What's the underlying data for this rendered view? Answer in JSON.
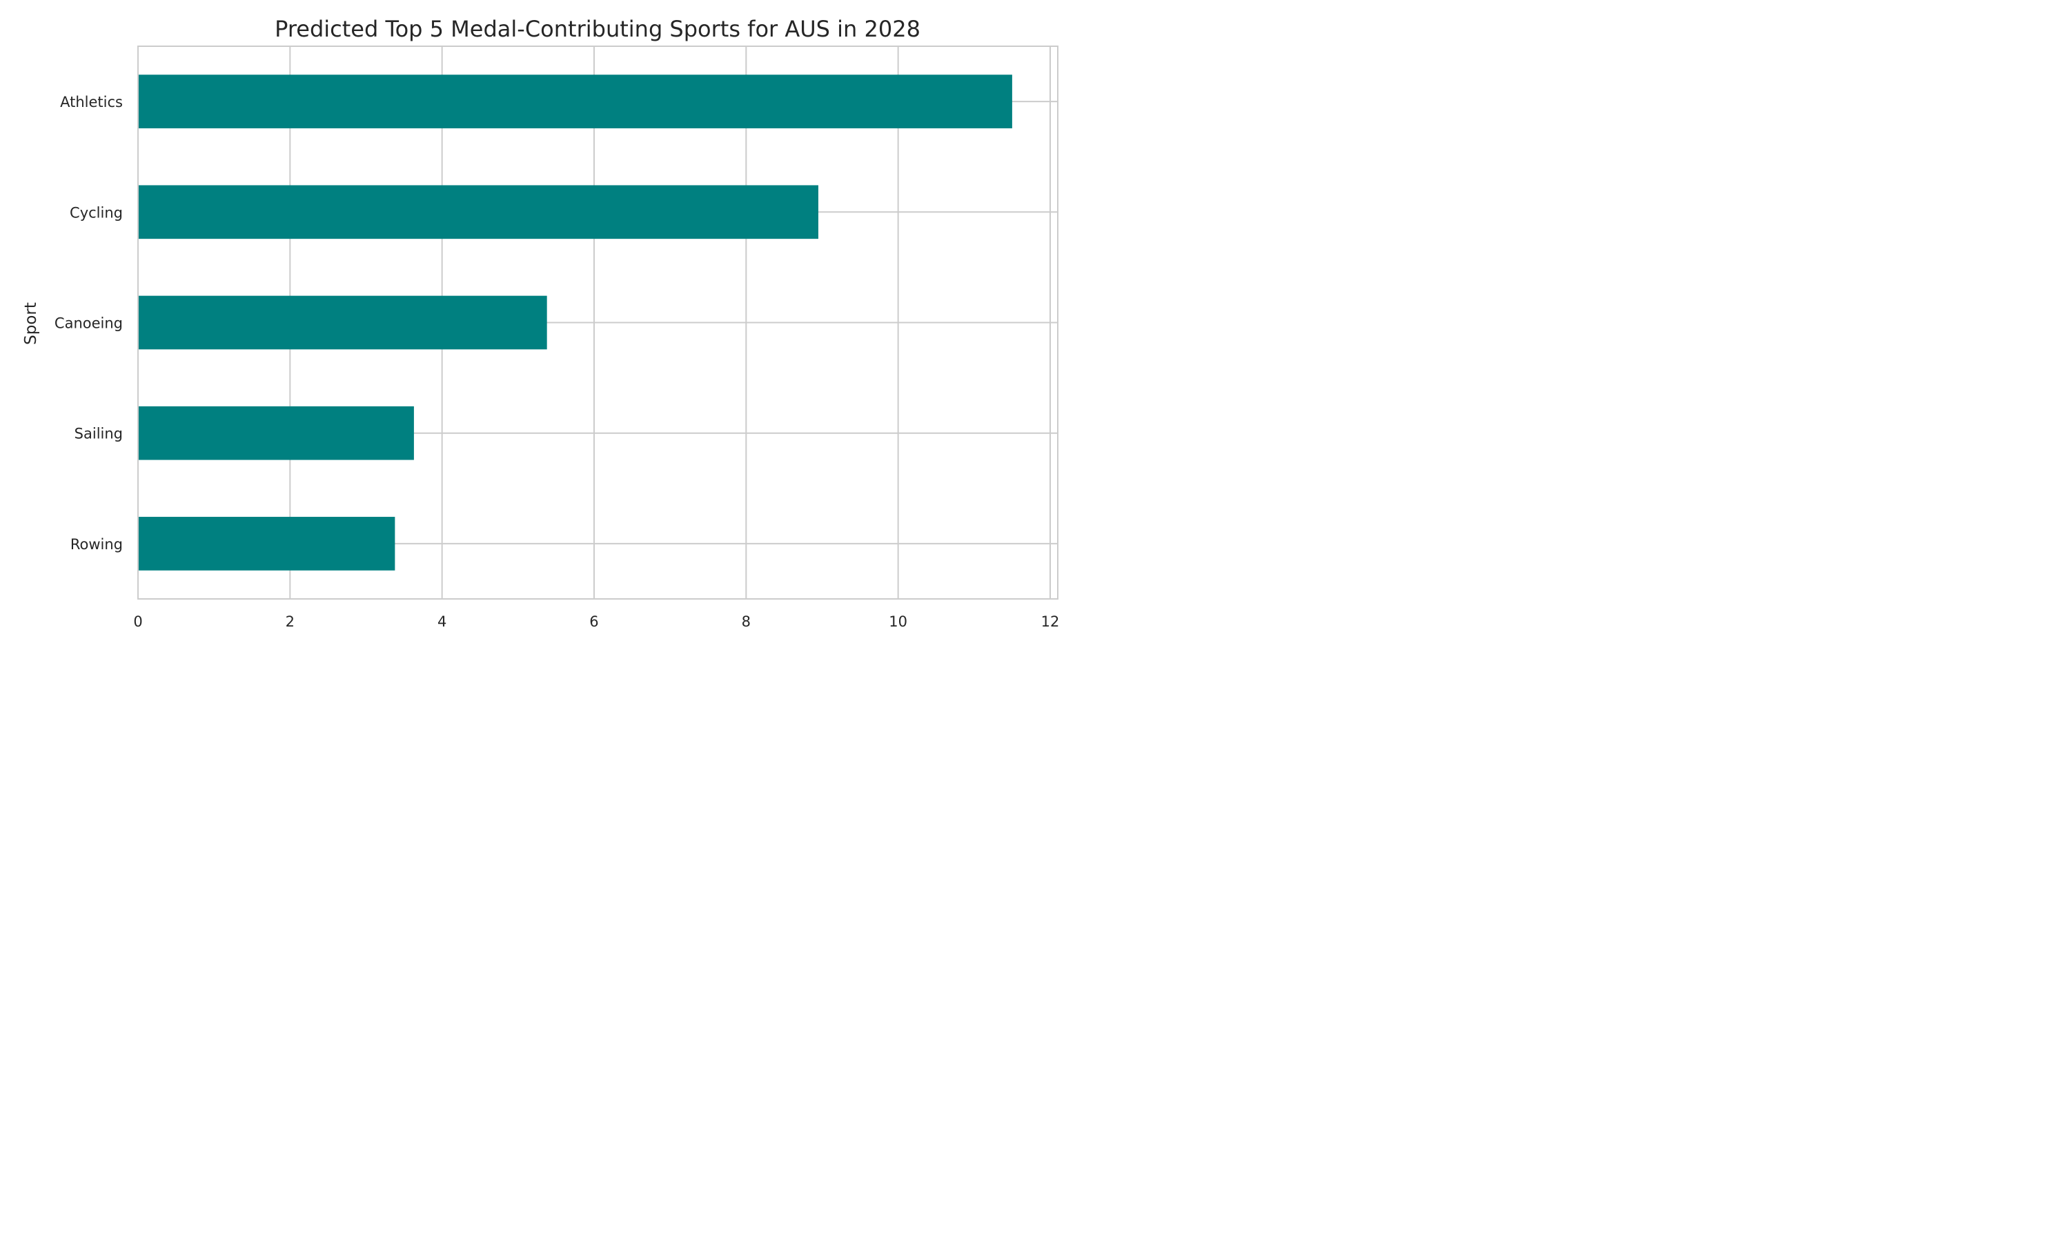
{
  "chart_data": {
    "type": "bar",
    "orientation": "horizontal",
    "title": "Predicted Top 5 Medal-Contributing Sports for AUS in 2028",
    "xlabel": "",
    "ylabel": "Sport",
    "categories": [
      "Athletics",
      "Cycling",
      "Canoeing",
      "Sailing",
      "Rowing"
    ],
    "values": [
      11.5,
      8.95,
      5.38,
      3.63,
      3.38
    ],
    "xlim": [
      0,
      12.1
    ],
    "xticks": [
      0,
      2,
      4,
      6,
      8,
      10,
      12
    ],
    "grid": true,
    "legend": "none",
    "bar_color": "#008080",
    "grid_color": "#cccccc",
    "text_color": "#262626"
  }
}
